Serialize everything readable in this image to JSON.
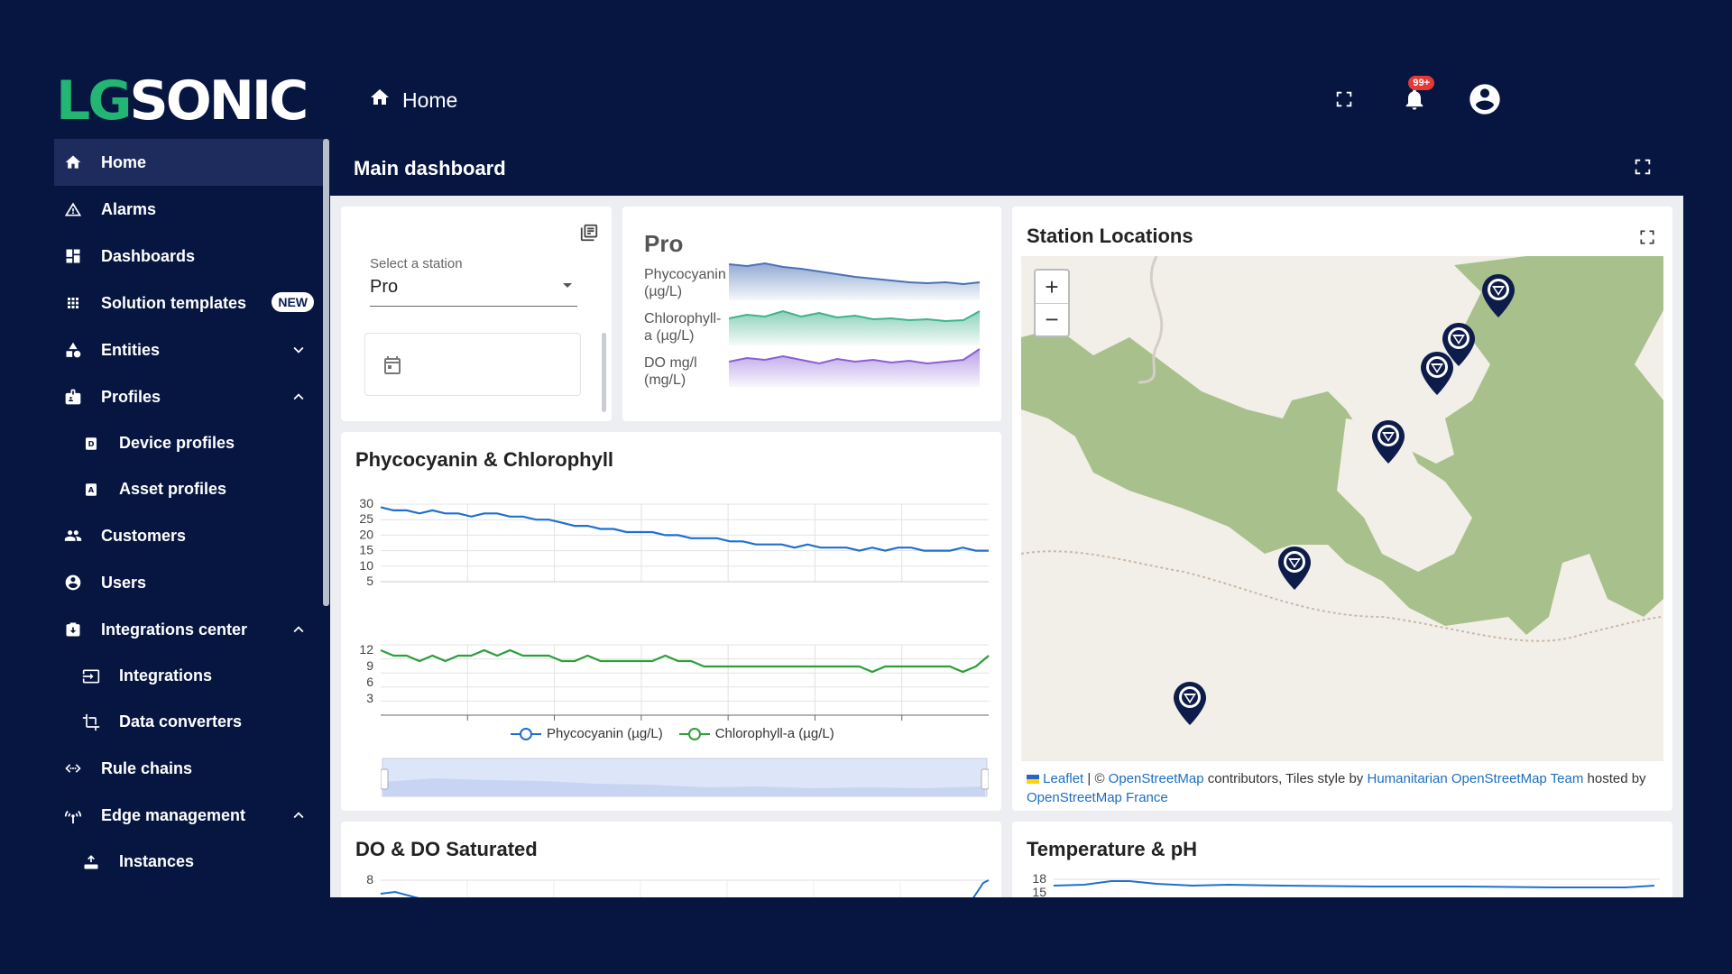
{
  "logo": {
    "part1": "LG",
    "part2": "SONIC"
  },
  "header": {
    "breadcrumb": "Home",
    "notifications_badge": "99+",
    "icons": [
      "fullscreen-icon",
      "bell-icon",
      "account-icon"
    ]
  },
  "sidebar": {
    "items": [
      {
        "label": "Home",
        "icon": "home-icon",
        "active": true
      },
      {
        "label": "Alarms",
        "icon": "warning-icon"
      },
      {
        "label": "Dashboards",
        "icon": "dashboard-icon"
      },
      {
        "label": "Solution templates",
        "icon": "apps-icon",
        "badge": "NEW"
      },
      {
        "label": "Entities",
        "icon": "entities-icon",
        "chevron": "down"
      },
      {
        "label": "Profiles",
        "icon": "badge-icon",
        "chevron": "up"
      },
      {
        "label": "Device profiles",
        "icon": "device-profile-icon",
        "sub": true
      },
      {
        "label": "Asset profiles",
        "icon": "asset-profile-icon",
        "sub": true
      },
      {
        "label": "Customers",
        "icon": "customers-icon"
      },
      {
        "label": "Users",
        "icon": "user-icon"
      },
      {
        "label": "Integrations center",
        "icon": "integrations-center-icon",
        "chevron": "up"
      },
      {
        "label": "Integrations",
        "icon": "input-icon",
        "sub": true
      },
      {
        "label": "Data converters",
        "icon": "crop-icon",
        "sub": true
      },
      {
        "label": "Rule chains",
        "icon": "rule-chains-icon"
      },
      {
        "label": "Edge management",
        "icon": "router-icon",
        "chevron": "up"
      },
      {
        "label": "Instances",
        "icon": "instances-icon",
        "sub": true
      }
    ]
  },
  "dashboard": {
    "title": "Main dashboard",
    "station_card": {
      "label": "Select a station",
      "value": "Pro"
    },
    "pro_card": {
      "title": "Pro",
      "sparks": [
        {
          "label_line1": "Phycocyanin",
          "label_line2": "(µg/L)",
          "color": "#4a72b5"
        },
        {
          "label_line1": "Chlorophyll-",
          "label_line2": "a (µg/L)",
          "color": "#3fb38d"
        },
        {
          "label_line1": "DO mg/l",
          "label_line2": "(mg/L)",
          "color": "#8b5fd6"
        }
      ]
    },
    "pc_card": {
      "title": "Phycocyanin & Chlorophyll",
      "legend": [
        "Phycocyanin (µg/L)",
        "Chlorophyll-a (µg/L)"
      ]
    },
    "map_card": {
      "title": "Station Locations",
      "zoom_in": "+",
      "zoom_out": "−",
      "attribution": {
        "leaflet": "Leaflet",
        "sep": " | © ",
        "osm": "OpenStreetMap",
        "text1": " contributors, Tiles style by ",
        "hot": "Humanitarian OpenStreetMap Team",
        "text2": " hosted by ",
        "osmfr": "OpenStreetMap France"
      },
      "marker_count": 6
    },
    "do_card": {
      "title": "DO & DO Saturated",
      "y_tick": "8"
    },
    "temp_card": {
      "title": "Temperature & pH",
      "y_ticks": [
        "18",
        "15"
      ]
    }
  },
  "chart_data": [
    {
      "type": "line",
      "title": "Phycocyanin & Chlorophyll",
      "series": [
        {
          "name": "Phycocyanin (µg/L)",
          "color": "#1f6fd1",
          "values": [
            29,
            28,
            28,
            27,
            28,
            27,
            27,
            26,
            27,
            27,
            26,
            26,
            25,
            25,
            24,
            23,
            23,
            22,
            22,
            21,
            21,
            21,
            20,
            20,
            19,
            19,
            19,
            18,
            18,
            17,
            17,
            17,
            16,
            17,
            16,
            16,
            16,
            15,
            16,
            15,
            16,
            16,
            15,
            15,
            15,
            16,
            15,
            15
          ]
        }
      ],
      "yticks": [
        "30",
        "25",
        "20",
        "15",
        "10",
        "5"
      ],
      "ylim": [
        5,
        30
      ]
    },
    {
      "type": "line",
      "series": [
        {
          "name": "Chlorophyll-a (µg/L)",
          "color": "#2e9e3a",
          "values": [
            12,
            11,
            11,
            10,
            11,
            10,
            11,
            11,
            12,
            11,
            12,
            11,
            11,
            11,
            10,
            10,
            11,
            10,
            10,
            10,
            10,
            10,
            11,
            10,
            10,
            9,
            9,
            9,
            9,
            9,
            9,
            9,
            9,
            9,
            9,
            9,
            9,
            9,
            8,
            9,
            9,
            9,
            9,
            9,
            9,
            8,
            9,
            11
          ]
        }
      ],
      "yticks": [
        "12",
        "9",
        "6",
        "3"
      ],
      "ylim": [
        0,
        13
      ]
    }
  ]
}
